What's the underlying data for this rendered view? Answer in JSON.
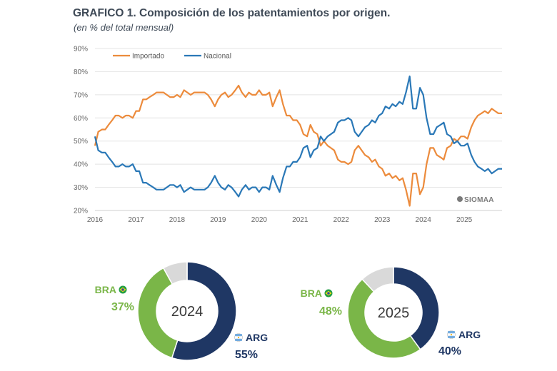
{
  "header": {
    "title": "GRAFICO 1. Composición de los patentamientos por origen.",
    "subtitle": "(en % del total mensual)"
  },
  "watermark": "SIOMAA",
  "colors": {
    "importado": "#ec8b3c",
    "nacional": "#2a78b7",
    "arg": "#1f3764",
    "bra": "#7ab648",
    "other": "#d9d9d9"
  },
  "chart_data": [
    {
      "type": "line",
      "title": "GRAFICO 1. Composición de los patentamientos por origen.",
      "subtitle": "(en % del total mensual)",
      "xlabel": "",
      "ylabel": "",
      "x_ticks": [
        "2016",
        "2017",
        "2018",
        "2019",
        "2020",
        "2021",
        "2022",
        "2023",
        "2024",
        "2025"
      ],
      "y_ticks": [
        "20%",
        "30%",
        "40%",
        "50%",
        "60%",
        "70%",
        "80%",
        "90%"
      ],
      "xlim": [
        2016,
        2025.92
      ],
      "ylim": [
        20,
        90
      ],
      "grid": true,
      "legend_position": "top-left",
      "series": [
        {
          "name": "Importado",
          "color": "#ec8b3c",
          "points": [
            [
              2016.0,
              48
            ],
            [
              2016.08,
              54
            ],
            [
              2016.17,
              55
            ],
            [
              2016.25,
              55
            ],
            [
              2016.33,
              57
            ],
            [
              2016.42,
              59
            ],
            [
              2016.5,
              61
            ],
            [
              2016.58,
              61
            ],
            [
              2016.67,
              60
            ],
            [
              2016.75,
              61
            ],
            [
              2016.83,
              61
            ],
            [
              2016.92,
              60
            ],
            [
              2017.0,
              63
            ],
            [
              2017.08,
              63
            ],
            [
              2017.17,
              68
            ],
            [
              2017.25,
              68
            ],
            [
              2017.33,
              69
            ],
            [
              2017.42,
              70
            ],
            [
              2017.5,
              71
            ],
            [
              2017.58,
              71
            ],
            [
              2017.67,
              71
            ],
            [
              2017.75,
              70
            ],
            [
              2017.83,
              69
            ],
            [
              2017.92,
              69
            ],
            [
              2018.0,
              70
            ],
            [
              2018.08,
              69
            ],
            [
              2018.17,
              72
            ],
            [
              2018.25,
              71
            ],
            [
              2018.33,
              70
            ],
            [
              2018.42,
              71
            ],
            [
              2018.5,
              71
            ],
            [
              2018.58,
              71
            ],
            [
              2018.67,
              71
            ],
            [
              2018.75,
              70
            ],
            [
              2018.83,
              68
            ],
            [
              2018.92,
              65
            ],
            [
              2019.0,
              68
            ],
            [
              2019.08,
              70
            ],
            [
              2019.17,
              71
            ],
            [
              2019.25,
              69
            ],
            [
              2019.33,
              70
            ],
            [
              2019.42,
              72
            ],
            [
              2019.5,
              74
            ],
            [
              2019.58,
              71
            ],
            [
              2019.67,
              69
            ],
            [
              2019.75,
              71
            ],
            [
              2019.83,
              70
            ],
            [
              2019.92,
              70
            ],
            [
              2020.0,
              72
            ],
            [
              2020.08,
              70
            ],
            [
              2020.17,
              70
            ],
            [
              2020.25,
              71
            ],
            [
              2020.33,
              65
            ],
            [
              2020.42,
              69
            ],
            [
              2020.5,
              72
            ],
            [
              2020.58,
              66
            ],
            [
              2020.67,
              61
            ],
            [
              2020.75,
              61
            ],
            [
              2020.83,
              59
            ],
            [
              2020.92,
              59
            ],
            [
              2021.0,
              57
            ],
            [
              2021.08,
              53
            ],
            [
              2021.17,
              52
            ],
            [
              2021.25,
              57
            ],
            [
              2021.33,
              54
            ],
            [
              2021.42,
              53
            ],
            [
              2021.5,
              48
            ],
            [
              2021.58,
              50
            ],
            [
              2021.67,
              48
            ],
            [
              2021.75,
              47
            ],
            [
              2021.83,
              46
            ],
            [
              2021.92,
              42
            ],
            [
              2022.0,
              41
            ],
            [
              2022.08,
              41
            ],
            [
              2022.17,
              40
            ],
            [
              2022.25,
              41
            ],
            [
              2022.33,
              46
            ],
            [
              2022.42,
              48
            ],
            [
              2022.5,
              46
            ],
            [
              2022.58,
              44
            ],
            [
              2022.67,
              43
            ],
            [
              2022.75,
              41
            ],
            [
              2022.83,
              42
            ],
            [
              2022.92,
              39
            ],
            [
              2023.0,
              38
            ],
            [
              2023.08,
              35
            ],
            [
              2023.17,
              36
            ],
            [
              2023.25,
              34
            ],
            [
              2023.33,
              35
            ],
            [
              2023.42,
              33
            ],
            [
              2023.5,
              34
            ],
            [
              2023.58,
              29
            ],
            [
              2023.67,
              22
            ],
            [
              2023.75,
              36
            ],
            [
              2023.83,
              36
            ],
            [
              2023.92,
              27
            ],
            [
              2024.0,
              30
            ],
            [
              2024.08,
              40
            ],
            [
              2024.17,
              47
            ],
            [
              2024.25,
              47
            ],
            [
              2024.33,
              44
            ],
            [
              2024.42,
              43
            ],
            [
              2024.5,
              42
            ],
            [
              2024.58,
              47
            ],
            [
              2024.67,
              48
            ],
            [
              2024.75,
              51
            ],
            [
              2024.83,
              50
            ],
            [
              2024.92,
              52
            ],
            [
              2025.0,
              52
            ],
            [
              2025.08,
              51
            ],
            [
              2025.17,
              56
            ],
            [
              2025.25,
              59
            ],
            [
              2025.33,
              61
            ],
            [
              2025.42,
              62
            ],
            [
              2025.5,
              63
            ],
            [
              2025.58,
              62
            ],
            [
              2025.67,
              64
            ],
            [
              2025.75,
              63
            ],
            [
              2025.83,
              62
            ],
            [
              2025.92,
              62
            ]
          ]
        },
        {
          "name": "Nacional",
          "color": "#2a78b7",
          "points": [
            [
              2016.0,
              52
            ],
            [
              2016.08,
              46
            ],
            [
              2016.17,
              45
            ],
            [
              2016.25,
              45
            ],
            [
              2016.33,
              43
            ],
            [
              2016.42,
              41
            ],
            [
              2016.5,
              39
            ],
            [
              2016.58,
              39
            ],
            [
              2016.67,
              40
            ],
            [
              2016.75,
              39
            ],
            [
              2016.83,
              39
            ],
            [
              2016.92,
              40
            ],
            [
              2017.0,
              37
            ],
            [
              2017.08,
              37
            ],
            [
              2017.17,
              32
            ],
            [
              2017.25,
              32
            ],
            [
              2017.33,
              31
            ],
            [
              2017.42,
              30
            ],
            [
              2017.5,
              29
            ],
            [
              2017.58,
              29
            ],
            [
              2017.67,
              29
            ],
            [
              2017.75,
              30
            ],
            [
              2017.83,
              31
            ],
            [
              2017.92,
              31
            ],
            [
              2018.0,
              30
            ],
            [
              2018.08,
              31
            ],
            [
              2018.17,
              28
            ],
            [
              2018.25,
              29
            ],
            [
              2018.33,
              30
            ],
            [
              2018.42,
              29
            ],
            [
              2018.5,
              29
            ],
            [
              2018.58,
              29
            ],
            [
              2018.67,
              29
            ],
            [
              2018.75,
              30
            ],
            [
              2018.83,
              32
            ],
            [
              2018.92,
              35
            ],
            [
              2019.0,
              32
            ],
            [
              2019.08,
              30
            ],
            [
              2019.17,
              29
            ],
            [
              2019.25,
              31
            ],
            [
              2019.33,
              30
            ],
            [
              2019.42,
              28
            ],
            [
              2019.5,
              26
            ],
            [
              2019.58,
              29
            ],
            [
              2019.67,
              31
            ],
            [
              2019.75,
              29
            ],
            [
              2019.83,
              30
            ],
            [
              2019.92,
              30
            ],
            [
              2020.0,
              28
            ],
            [
              2020.08,
              30
            ],
            [
              2020.17,
              30
            ],
            [
              2020.25,
              29
            ],
            [
              2020.33,
              35
            ],
            [
              2020.42,
              31
            ],
            [
              2020.5,
              28
            ],
            [
              2020.58,
              34
            ],
            [
              2020.67,
              39
            ],
            [
              2020.75,
              39
            ],
            [
              2020.83,
              41
            ],
            [
              2020.92,
              41
            ],
            [
              2021.0,
              43
            ],
            [
              2021.08,
              47
            ],
            [
              2021.17,
              48
            ],
            [
              2021.25,
              43
            ],
            [
              2021.33,
              46
            ],
            [
              2021.42,
              47
            ],
            [
              2021.5,
              52
            ],
            [
              2021.58,
              50
            ],
            [
              2021.67,
              52
            ],
            [
              2021.75,
              53
            ],
            [
              2021.83,
              54
            ],
            [
              2021.92,
              58
            ],
            [
              2022.0,
              59
            ],
            [
              2022.08,
              59
            ],
            [
              2022.17,
              60
            ],
            [
              2022.25,
              59
            ],
            [
              2022.33,
              54
            ],
            [
              2022.42,
              52
            ],
            [
              2022.5,
              54
            ],
            [
              2022.58,
              56
            ],
            [
              2022.67,
              57
            ],
            [
              2022.75,
              59
            ],
            [
              2022.83,
              58
            ],
            [
              2022.92,
              61
            ],
            [
              2023.0,
              62
            ],
            [
              2023.08,
              65
            ],
            [
              2023.17,
              64
            ],
            [
              2023.25,
              66
            ],
            [
              2023.33,
              65
            ],
            [
              2023.42,
              67
            ],
            [
              2023.5,
              66
            ],
            [
              2023.58,
              71
            ],
            [
              2023.67,
              78
            ],
            [
              2023.75,
              64
            ],
            [
              2023.83,
              64
            ],
            [
              2023.92,
              73
            ],
            [
              2024.0,
              70
            ],
            [
              2024.08,
              60
            ],
            [
              2024.17,
              53
            ],
            [
              2024.25,
              53
            ],
            [
              2024.33,
              56
            ],
            [
              2024.42,
              57
            ],
            [
              2024.5,
              58
            ],
            [
              2024.58,
              53
            ],
            [
              2024.67,
              52
            ],
            [
              2024.75,
              49
            ],
            [
              2024.83,
              50
            ],
            [
              2024.92,
              48
            ],
            [
              2025.0,
              48
            ],
            [
              2025.08,
              49
            ],
            [
              2025.17,
              44
            ],
            [
              2025.25,
              41
            ],
            [
              2025.33,
              39
            ],
            [
              2025.42,
              38
            ],
            [
              2025.5,
              37
            ],
            [
              2025.58,
              38
            ],
            [
              2025.67,
              36
            ],
            [
              2025.75,
              37
            ],
            [
              2025.83,
              38
            ],
            [
              2025.92,
              38
            ]
          ]
        }
      ]
    },
    {
      "type": "pie",
      "title": "2024",
      "slices": [
        {
          "label": "ARG",
          "value": 55,
          "text": "55%",
          "color": "#1f3764"
        },
        {
          "label": "BRA",
          "value": 37,
          "text": "37%",
          "color": "#7ab648"
        },
        {
          "label": "",
          "value": 8,
          "text": "",
          "color": "#d9d9d9"
        }
      ]
    },
    {
      "type": "pie",
      "title": "2025",
      "slices": [
        {
          "label": "ARG",
          "value": 40,
          "text": "40%",
          "color": "#1f3764"
        },
        {
          "label": "BRA",
          "value": 48,
          "text": "48%",
          "color": "#7ab648"
        },
        {
          "label": "",
          "value": 12,
          "text": "",
          "color": "#d9d9d9"
        }
      ]
    }
  ]
}
